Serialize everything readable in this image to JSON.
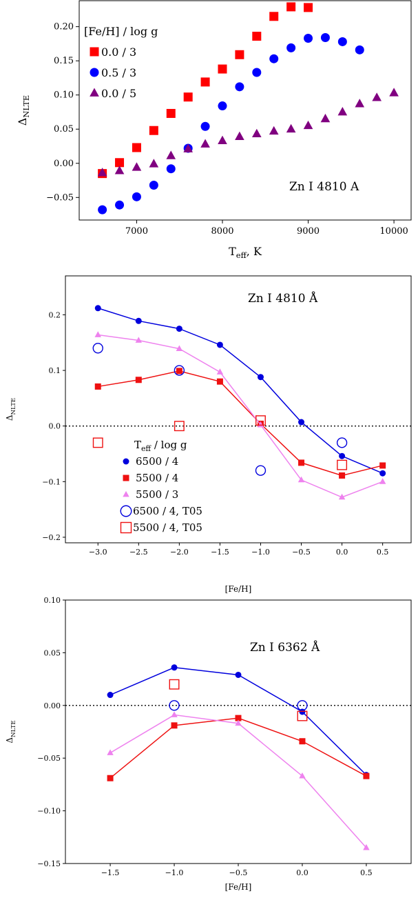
{
  "chart_data": [
    {
      "type": "scatter",
      "annotation": "Zn I 4810 A",
      "xlabel": "T",
      "xlabel_sub": "eff",
      "xlabel_suffix": ", K",
      "ylabel": "Δ",
      "ylabel_sub": "NLTE",
      "xlim": [
        6330,
        10200
      ],
      "ylim": [
        -0.083,
        0.238
      ],
      "xticks": [
        7000,
        8000,
        9000,
        10000
      ],
      "yticks": [
        -0.05,
        0.0,
        0.05,
        0.1,
        0.15,
        0.2
      ],
      "ytick_labels": [
        "−0.05",
        "0.00",
        "0.05",
        "0.10",
        "0.15",
        "0.20"
      ],
      "legend_title": "[Fe/H] / log g",
      "legend_position": "upper-left",
      "series": [
        {
          "name": "0.0 / 3",
          "marker": "square",
          "color": "#ff0000",
          "lines": false,
          "x": [
            6600,
            6800,
            7000,
            7200,
            7400,
            7600,
            7800,
            8000,
            8200,
            8400,
            8600,
            8800,
            9000
          ],
          "y": [
            -0.015,
            0.001,
            0.023,
            0.048,
            0.073,
            0.097,
            0.119,
            0.138,
            0.159,
            0.186,
            0.215,
            0.229,
            0.228
          ]
        },
        {
          "name": "0.5 / 3",
          "marker": "circle",
          "color": "#0000ff",
          "lines": false,
          "x": [
            6600,
            6800,
            7000,
            7200,
            7400,
            7600,
            7800,
            8000,
            8200,
            8400,
            8600,
            8800,
            9000,
            9200,
            9400,
            9600
          ],
          "y": [
            -0.068,
            -0.061,
            -0.049,
            -0.032,
            -0.008,
            0.022,
            0.054,
            0.084,
            0.112,
            0.133,
            0.153,
            0.169,
            0.183,
            0.184,
            0.178,
            0.166
          ]
        },
        {
          "name": "0.0 / 5",
          "marker": "triangle",
          "color": "#800080",
          "lines": false,
          "x": [
            6600,
            6800,
            7000,
            7200,
            7400,
            7600,
            7800,
            8000,
            8200,
            8400,
            8600,
            8800,
            9000,
            9200,
            9400,
            9600,
            9800,
            10000
          ],
          "y": [
            -0.014,
            -0.011,
            -0.006,
            -0.001,
            0.011,
            0.021,
            0.028,
            0.033,
            0.039,
            0.043,
            0.047,
            0.05,
            0.055,
            0.065,
            0.075,
            0.087,
            0.096,
            0.103
          ]
        }
      ]
    },
    {
      "type": "line",
      "annotation": "Zn I 4810 Å",
      "xlabel": "[Fe/H]",
      "ylabel": "Δ",
      "ylabel_sub": "NLTE",
      "xlim": [
        -3.4,
        0.85
      ],
      "ylim": [
        -0.21,
        0.27
      ],
      "xticks": [
        -3.0,
        -2.5,
        -2.0,
        -1.5,
        -1.0,
        -0.5,
        0.0,
        0.5
      ],
      "xtick_labels": [
        "−3.0",
        "−2.5",
        "−2.0",
        "−1.5",
        "−1.0",
        "−0.5",
        "0.0",
        "0.5"
      ],
      "yticks": [
        -0.2,
        -0.1,
        0.0,
        0.1,
        0.2
      ],
      "ytick_labels": [
        "−0.2",
        "−0.1",
        "0.0",
        "0.1",
        "0.2"
      ],
      "zero_line": true,
      "legend_title": "T",
      "legend_title_sub": "eff",
      "legend_title_suffix": " / log g",
      "legend_position": "lower-left",
      "series": [
        {
          "name": "6500 / 4",
          "marker": "circle",
          "color": "#0000dd",
          "lines": true,
          "x": [
            -3.0,
            -2.5,
            -2.0,
            -1.5,
            -1.0,
            -0.5,
            0.0,
            0.5
          ],
          "y": [
            0.212,
            0.189,
            0.175,
            0.146,
            0.088,
            0.007,
            -0.054,
            -0.085
          ]
        },
        {
          "name": "5500 / 4",
          "marker": "square",
          "color": "#ee1111",
          "lines": true,
          "x": [
            -3.0,
            -2.5,
            -2.0,
            -1.5,
            -1.0,
            -0.5,
            0.0,
            0.5
          ],
          "y": [
            0.071,
            0.083,
            0.099,
            0.08,
            0.004,
            -0.066,
            -0.089,
            -0.071
          ]
        },
        {
          "name": "5500 / 3",
          "marker": "triangle",
          "color": "#ee82ee",
          "lines": true,
          "x": [
            -3.0,
            -2.5,
            -2.0,
            -1.5,
            -1.0,
            -0.5,
            0.0,
            0.5
          ],
          "y": [
            0.164,
            0.154,
            0.139,
            0.097,
            0.002,
            -0.097,
            -0.128,
            -0.1
          ]
        },
        {
          "name": "6500 / 4, T05",
          "marker": "open-circle",
          "color": "#0000dd",
          "lines": false,
          "x": [
            -3.0,
            -2.0,
            -1.0,
            0.0
          ],
          "y": [
            0.14,
            0.1,
            -0.08,
            -0.03
          ]
        },
        {
          "name": "5500 / 4, T05",
          "marker": "open-square",
          "color": "#ee1111",
          "lines": false,
          "x": [
            -3.0,
            -2.0,
            -1.0,
            0.0
          ],
          "y": [
            -0.03,
            0.0,
            0.01,
            -0.07
          ]
        }
      ]
    },
    {
      "type": "line",
      "annotation": "Zn I 6362 Å",
      "xlabel": "[Fe/H]",
      "ylabel": "Δ",
      "ylabel_sub": "NLTE",
      "xlim": [
        -1.85,
        0.85
      ],
      "ylim": [
        -0.15,
        0.1
      ],
      "xticks": [
        -1.5,
        -1.0,
        -0.5,
        0.0,
        0.5
      ],
      "xtick_labels": [
        "−1.5",
        "−1.0",
        "−0.5",
        "0.0",
        "0.5"
      ],
      "yticks": [
        -0.15,
        -0.1,
        -0.05,
        0.0,
        0.05,
        0.1
      ],
      "ytick_labels": [
        "−0.15",
        "−0.10",
        "−0.05",
        "0.00",
        "0.05",
        "0.10"
      ],
      "zero_line": true,
      "series": [
        {
          "marker": "circle",
          "color": "#0000dd",
          "lines": true,
          "x": [
            -1.5,
            -1.0,
            -0.5,
            0.0,
            0.5
          ],
          "y": [
            0.01,
            0.036,
            0.029,
            -0.006,
            -0.066
          ]
        },
        {
          "marker": "square",
          "color": "#ee1111",
          "lines": true,
          "x": [
            -1.5,
            -1.0,
            -0.5,
            0.0,
            0.5
          ],
          "y": [
            -0.069,
            -0.019,
            -0.012,
            -0.034,
            -0.067
          ]
        },
        {
          "marker": "triangle",
          "color": "#ee82ee",
          "lines": true,
          "x": [
            -1.5,
            -1.0,
            -0.5,
            0.0,
            0.5
          ],
          "y": [
            -0.045,
            -0.009,
            -0.017,
            -0.067,
            -0.135
          ]
        },
        {
          "marker": "open-circle",
          "color": "#0000dd",
          "lines": false,
          "x": [
            -1.0,
            0.0
          ],
          "y": [
            0.0,
            0.0
          ]
        },
        {
          "marker": "open-square",
          "color": "#ee1111",
          "lines": false,
          "x": [
            -1.0,
            0.0
          ],
          "y": [
            0.02,
            -0.01
          ]
        }
      ]
    }
  ]
}
